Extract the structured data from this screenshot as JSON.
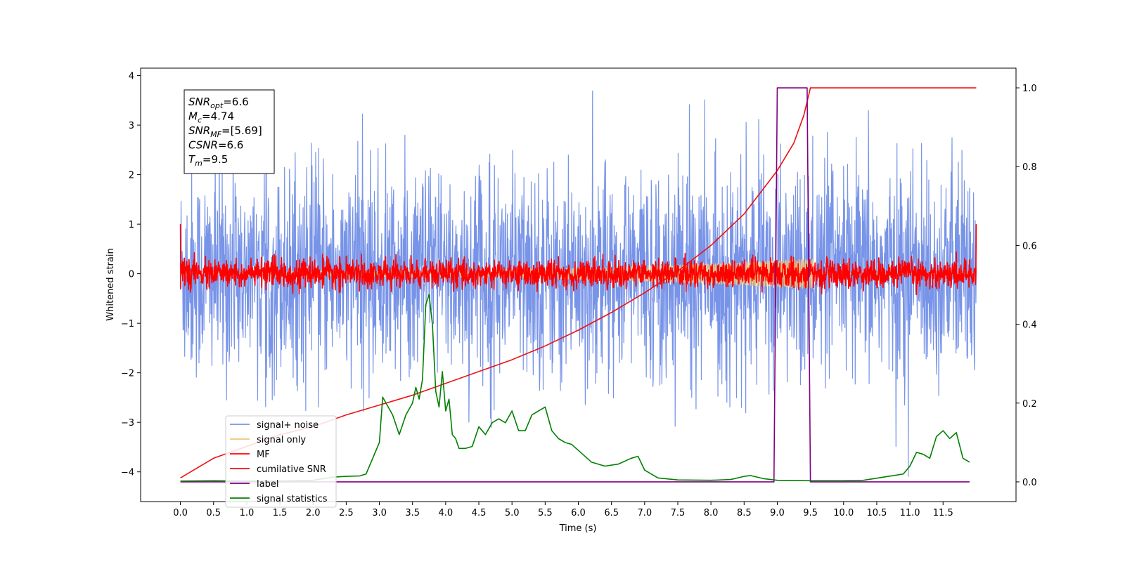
{
  "chart_data": {
    "type": "line",
    "title": "",
    "xlabel": "Time (s)",
    "ylabel": "Whitened strain",
    "xlim": [
      -0.6,
      12.6
    ],
    "ylim": [
      -4.6,
      4.15
    ],
    "y2lim": [
      -0.05,
      1.05
    ],
    "grid": false,
    "legend_position": "lower-left",
    "x_ticks": [
      "0.0",
      "0.5",
      "1.0",
      "1.5",
      "2.0",
      "2.5",
      "3.0",
      "3.5",
      "4.0",
      "4.5",
      "5.0",
      "5.5",
      "6.0",
      "6.5",
      "7.0",
      "7.5",
      "8.0",
      "8.5",
      "9.0",
      "9.5",
      "10.0",
      "10.5",
      "11.0",
      "11.5"
    ],
    "y_ticks": [
      4,
      3,
      2,
      1,
      0,
      -1,
      -2,
      -3,
      -4
    ],
    "y_tick_labels": [
      "4",
      "3",
      "2",
      "1",
      "0",
      "−1",
      "−2",
      "−3",
      "−4"
    ],
    "y2_ticks": [
      "0.0",
      "0.2",
      "0.4",
      "0.6",
      "0.8",
      "1.0"
    ],
    "annotation_lines": [
      {
        "main": "SNR",
        "sub": "opt",
        "rest": "=6.6"
      },
      {
        "main": "M",
        "sub": "c",
        "rest": "=4.74"
      },
      {
        "main": "SNR",
        "sub": "MF",
        "rest": "=[5.69]"
      },
      {
        "main": "CSNR",
        "sub": "",
        "rest": "=6.6"
      },
      {
        "main": "T",
        "sub": "m",
        "rest": "=9.5"
      }
    ],
    "series": [
      {
        "name": "signal+ noise",
        "color": "#7894e8",
        "axis": "left",
        "kind": "noise",
        "std": 1.05,
        "x_range": [
          0,
          12
        ]
      },
      {
        "name": "signal only",
        "color": "#f5c27a",
        "axis": "left",
        "kind": "noise",
        "std": 0.12,
        "x_range": [
          0,
          12
        ]
      },
      {
        "name": "MF",
        "color": "#ff0000",
        "axis": "left",
        "kind": "noise",
        "std": 0.14,
        "x_range": [
          0,
          12
        ]
      },
      {
        "name": "cumilative SNR",
        "color": "#ee1111",
        "axis": "right",
        "x": [
          0,
          0.5,
          1,
          1.5,
          2,
          2.5,
          3,
          3.5,
          4,
          4.5,
          5,
          5.5,
          6,
          6.5,
          7,
          7.5,
          8,
          8.5,
          9,
          9.25,
          9.4,
          9.5,
          12
        ],
        "y": [
          0.01,
          0.06,
          0.09,
          0.12,
          0.14,
          0.17,
          0.195,
          0.22,
          0.25,
          0.28,
          0.31,
          0.345,
          0.385,
          0.43,
          0.48,
          0.535,
          0.6,
          0.68,
          0.79,
          0.86,
          0.93,
          1.0,
          1.0
        ]
      },
      {
        "name": "label",
        "color": "#800080",
        "axis": "right",
        "x": [
          0,
          8.95,
          9.0,
          9.45,
          9.5,
          11.9
        ],
        "y": [
          0.0,
          0.0,
          1.0,
          1.0,
          0.0,
          0.0
        ]
      },
      {
        "name": "signal statistics",
        "color": "#008000",
        "axis": "right",
        "x": [
          0,
          0.5,
          1,
          1.5,
          2,
          2.3,
          2.5,
          2.7,
          2.8,
          2.9,
          3.0,
          3.05,
          3.1,
          3.2,
          3.3,
          3.4,
          3.5,
          3.55,
          3.6,
          3.65,
          3.7,
          3.75,
          3.8,
          3.85,
          3.9,
          3.95,
          4.0,
          4.05,
          4.1,
          4.15,
          4.2,
          4.3,
          4.4,
          4.5,
          4.6,
          4.7,
          4.8,
          4.9,
          5.0,
          5.1,
          5.2,
          5.3,
          5.4,
          5.5,
          5.6,
          5.7,
          5.8,
          5.9,
          6.0,
          6.2,
          6.4,
          6.6,
          6.8,
          6.9,
          7.0,
          7.2,
          7.5,
          8.0,
          8.3,
          8.5,
          8.6,
          8.8,
          9.0,
          9.5,
          10.0,
          10.3,
          10.6,
          10.9,
          11.0,
          11.1,
          11.2,
          11.3,
          11.4,
          11.5,
          11.6,
          11.7,
          11.8,
          11.9
        ],
        "y": [
          0.002,
          0.003,
          0.002,
          0.002,
          0.004,
          0.012,
          0.014,
          0.015,
          0.02,
          0.06,
          0.1,
          0.215,
          0.2,
          0.17,
          0.12,
          0.17,
          0.2,
          0.24,
          0.21,
          0.26,
          0.45,
          0.475,
          0.4,
          0.23,
          0.19,
          0.28,
          0.18,
          0.21,
          0.12,
          0.11,
          0.085,
          0.085,
          0.09,
          0.14,
          0.12,
          0.15,
          0.16,
          0.15,
          0.18,
          0.13,
          0.13,
          0.17,
          0.18,
          0.19,
          0.13,
          0.11,
          0.1,
          0.095,
          0.08,
          0.05,
          0.04,
          0.045,
          0.06,
          0.065,
          0.03,
          0.01,
          0.005,
          0.004,
          0.006,
          0.014,
          0.016,
          0.008,
          0.004,
          0.003,
          0.003,
          0.004,
          0.012,
          0.02,
          0.04,
          0.075,
          0.07,
          0.06,
          0.115,
          0.13,
          0.11,
          0.125,
          0.06,
          0.05
        ]
      }
    ]
  }
}
